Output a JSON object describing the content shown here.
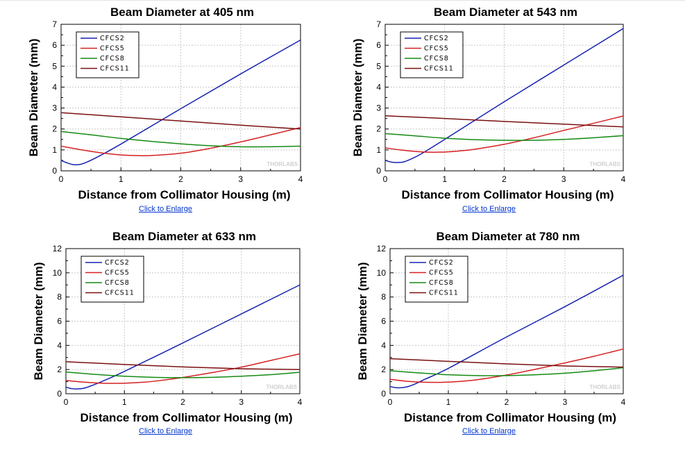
{
  "colors": {
    "CFCS2": "#1522b0",
    "CFCS5": "#d42020",
    "CFCS8": "#148a14",
    "CFCS11": "#7a1010",
    "grid": "#c8c8c8",
    "link": "#0033cc"
  },
  "links": {
    "enlarge_label": "Click to Enlarge"
  },
  "chart_data": [
    {
      "type": "line",
      "title": "Beam Diameter at 405 nm",
      "xlabel": "Distance from Collimator Housing (m)",
      "ylabel": "Beam Diameter (mm)",
      "xlim": [
        0,
        4
      ],
      "ylim": [
        0,
        7
      ],
      "xticks": [
        0,
        1,
        2,
        3,
        4
      ],
      "yticks": [
        0,
        1,
        2,
        3,
        4,
        5,
        6,
        7
      ],
      "grid": true,
      "legend": "top-left",
      "watermark": "THORLABS",
      "series": [
        {
          "name": "CFCS2",
          "x": [
            0,
            0.1,
            0.2,
            0.3,
            0.4,
            0.6,
            1,
            2,
            3,
            4
          ],
          "y": [
            0.5,
            0.38,
            0.3,
            0.3,
            0.38,
            0.65,
            1.28,
            2.97,
            4.63,
            6.25
          ]
        },
        {
          "name": "CFCS5",
          "x": [
            0,
            0.25,
            0.5,
            0.75,
            1,
            1.25,
            1.5,
            2,
            2.5,
            3,
            3.5,
            4
          ],
          "y": [
            1.18,
            1.05,
            0.93,
            0.83,
            0.76,
            0.73,
            0.73,
            0.84,
            1.08,
            1.38,
            1.72,
            2.07
          ]
        },
        {
          "name": "CFCS8",
          "x": [
            0,
            0.5,
            1,
            1.5,
            2,
            2.5,
            3,
            3.5,
            4
          ],
          "y": [
            1.88,
            1.72,
            1.55,
            1.41,
            1.29,
            1.2,
            1.15,
            1.15,
            1.18
          ]
        },
        {
          "name": "CFCS11",
          "x": [
            0,
            1,
            2,
            3,
            4
          ],
          "y": [
            2.78,
            2.58,
            2.38,
            2.18,
            2.0
          ]
        }
      ]
    },
    {
      "type": "line",
      "title": "Beam Diameter at 543 nm",
      "xlabel": "Distance from Collimator Housing (m)",
      "ylabel": "Beam Diameter (mm)",
      "xlim": [
        0,
        4
      ],
      "ylim": [
        0,
        7
      ],
      "xticks": [
        0,
        1,
        2,
        3,
        4
      ],
      "yticks": [
        0,
        1,
        2,
        3,
        4,
        5,
        6,
        7
      ],
      "grid": true,
      "legend": "top-left",
      "watermark": "THORLABS",
      "series": [
        {
          "name": "CFCS2",
          "x": [
            0,
            0.1,
            0.2,
            0.3,
            0.4,
            0.6,
            1,
            2,
            3,
            4
          ],
          "y": [
            0.5,
            0.42,
            0.4,
            0.42,
            0.52,
            0.8,
            1.5,
            3.3,
            5.05,
            6.8
          ]
        },
        {
          "name": "CFCS5",
          "x": [
            0,
            0.25,
            0.5,
            0.75,
            1,
            1.25,
            1.5,
            2,
            2.5,
            3,
            3.5,
            4
          ],
          "y": [
            1.1,
            1.0,
            0.93,
            0.89,
            0.9,
            0.95,
            1.03,
            1.27,
            1.58,
            1.93,
            2.27,
            2.62
          ]
        },
        {
          "name": "CFCS8",
          "x": [
            0,
            0.5,
            1,
            1.5,
            2,
            2.5,
            3,
            3.5,
            4
          ],
          "y": [
            1.78,
            1.67,
            1.56,
            1.49,
            1.46,
            1.46,
            1.5,
            1.58,
            1.68
          ]
        },
        {
          "name": "CFCS11",
          "x": [
            0,
            1,
            2,
            3,
            4
          ],
          "y": [
            2.63,
            2.5,
            2.36,
            2.23,
            2.1
          ]
        }
      ]
    },
    {
      "type": "line",
      "title": "Beam Diameter at 633 nm",
      "xlabel": "Distance from Collimator Housing (m)",
      "ylabel": "Beam Diameter (mm)",
      "xlim": [
        0,
        4
      ],
      "ylim": [
        0,
        12
      ],
      "xticks": [
        0,
        1,
        2,
        3,
        4
      ],
      "yticks": [
        0,
        2,
        4,
        6,
        8,
        10,
        12
      ],
      "grid": true,
      "legend": "top-left",
      "watermark": "THORLABS",
      "series": [
        {
          "name": "CFCS2",
          "x": [
            0,
            0.1,
            0.2,
            0.3,
            0.4,
            0.6,
            1,
            2,
            3,
            4
          ],
          "y": [
            0.55,
            0.42,
            0.4,
            0.45,
            0.6,
            0.98,
            1.85,
            4.2,
            6.6,
            9.0
          ]
        },
        {
          "name": "CFCS5",
          "x": [
            0,
            0.25,
            0.5,
            0.75,
            1,
            1.25,
            1.5,
            2,
            2.5,
            3,
            3.5,
            4
          ],
          "y": [
            1.1,
            0.98,
            0.9,
            0.86,
            0.87,
            0.93,
            1.03,
            1.35,
            1.75,
            2.2,
            2.75,
            3.3
          ]
        },
        {
          "name": "CFCS8",
          "x": [
            0,
            0.5,
            1,
            1.5,
            2,
            2.5,
            3,
            3.5,
            4
          ],
          "y": [
            1.8,
            1.6,
            1.45,
            1.36,
            1.33,
            1.36,
            1.45,
            1.58,
            1.78
          ]
        },
        {
          "name": "CFCS11",
          "x": [
            0,
            1,
            2,
            3,
            4
          ],
          "y": [
            2.65,
            2.42,
            2.22,
            2.07,
            2.0
          ]
        }
      ]
    },
    {
      "type": "line",
      "title": "Beam Diameter at 780 nm",
      "xlabel": "Distance from Collimator Housing (m)",
      "ylabel": "Beam Diameter (mm)",
      "xlim": [
        0,
        4
      ],
      "ylim": [
        0,
        12
      ],
      "xticks": [
        0,
        1,
        2,
        3,
        4
      ],
      "yticks": [
        0,
        2,
        4,
        6,
        8,
        10,
        12
      ],
      "grid": true,
      "legend": "top-left",
      "watermark": "THORLABS",
      "series": [
        {
          "name": "CFCS2",
          "x": [
            0,
            0.1,
            0.2,
            0.3,
            0.4,
            0.6,
            1,
            2,
            3,
            4
          ],
          "y": [
            0.6,
            0.5,
            0.5,
            0.58,
            0.75,
            1.2,
            2.1,
            4.7,
            7.2,
            9.8
          ]
        },
        {
          "name": "CFCS5",
          "x": [
            0,
            0.25,
            0.5,
            0.75,
            1,
            1.25,
            1.5,
            2,
            2.5,
            3,
            3.5,
            4
          ],
          "y": [
            1.2,
            1.05,
            0.97,
            0.94,
            0.96,
            1.04,
            1.16,
            1.55,
            2.03,
            2.55,
            3.1,
            3.7
          ]
        },
        {
          "name": "CFCS8",
          "x": [
            0,
            0.5,
            1,
            1.5,
            2,
            2.5,
            3,
            3.5,
            4
          ],
          "y": [
            1.9,
            1.72,
            1.57,
            1.5,
            1.5,
            1.57,
            1.7,
            1.9,
            2.15
          ]
        },
        {
          "name": "CFCS11",
          "x": [
            0,
            1,
            2,
            3,
            4
          ],
          "y": [
            2.9,
            2.68,
            2.47,
            2.3,
            2.2
          ]
        }
      ]
    }
  ]
}
